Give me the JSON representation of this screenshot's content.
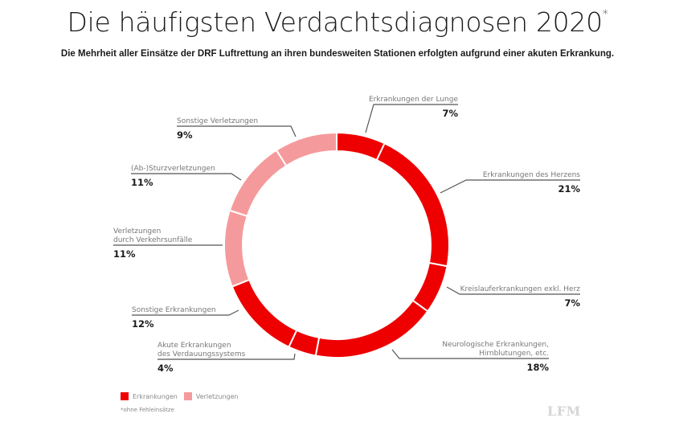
{
  "header": {
    "title": "Die häufigsten Verdachtsdiagnosen 2020",
    "title_marker": "*",
    "subtitle": "Die Mehrheit aller Einsätze der DRF Luftrettung an ihren bundesweiten Stationen erfolgten aufgrund einer akuten Erkrankung."
  },
  "colors": {
    "erkrankungen": "#EE0000",
    "verletzungen": "#F59A9C",
    "separator": "#ffffff",
    "leader": "#555555"
  },
  "chart_data": {
    "type": "pie",
    "variant": "donut",
    "title": "Die häufigsten Verdachtsdiagnosen 2020*",
    "unit": "%",
    "start": "top",
    "direction": "clockwise",
    "slices": [
      {
        "label": "Erkrankungen der Lunge",
        "value": 7,
        "value_label": "7%",
        "group": "erkrankungen"
      },
      {
        "label": "Erkrankungen des Herzens",
        "value": 21,
        "value_label": "21%",
        "group": "erkrankungen"
      },
      {
        "label": "Kreislauferkrankungen exkl. Herz",
        "value": 7,
        "value_label": "7%",
        "group": "erkrankungen"
      },
      {
        "label": "Neurologische Erkrankungen, Hirnblutungen, etc.",
        "value": 18,
        "value_label": "18%",
        "group": "erkrankungen"
      },
      {
        "label": "Akute Erkrankungen des Verdauungssystems",
        "value": 4,
        "value_label": "4%",
        "group": "erkrankungen"
      },
      {
        "label": "Sonstige Erkrankungen",
        "value": 12,
        "value_label": "12%",
        "group": "erkrankungen"
      },
      {
        "label": "Verletzungen durch Verkehrsunfälle",
        "value": 11,
        "value_label": "11%",
        "group": "verletzungen"
      },
      {
        "label": "(Ab-)Sturzverletzungen",
        "value": 11,
        "value_label": "11%",
        "group": "verletzungen"
      },
      {
        "label": "Sonstige Verletzungen",
        "value": 9,
        "value_label": "9%",
        "group": "verletzungen"
      }
    ],
    "legend": [
      {
        "label": "Erkrankungen",
        "group": "erkrankungen"
      },
      {
        "label": "Verletzungen",
        "group": "verletzungen"
      }
    ],
    "legend_position": "bottom-left"
  },
  "labels": [
    {
      "lines": [
        "Erkrankungen der Lunge"
      ],
      "pct": "7%"
    },
    {
      "lines": [
        "Erkrankungen des Herzens"
      ],
      "pct": "21%"
    },
    {
      "lines": [
        "Kreislauferkrankungen exkl. Herz"
      ],
      "pct": "7%"
    },
    {
      "lines": [
        "Neurologische Erkrankungen,",
        "Hirnblutungen, etc."
      ],
      "pct": "18%"
    },
    {
      "lines": [
        "Akute Erkrankungen",
        "des Verdauungssystems"
      ],
      "pct": "4%"
    },
    {
      "lines": [
        "Sonstige Erkrankungen"
      ],
      "pct": "12%"
    },
    {
      "lines": [
        "Verletzungen",
        "durch Verkehrsunfälle"
      ],
      "pct": "11%"
    },
    {
      "lines": [
        "(Ab-)Sturzverletzungen"
      ],
      "pct": "11%"
    },
    {
      "lines": [
        "Sonstige Verletzungen"
      ],
      "pct": "9%"
    }
  ],
  "legend": {
    "erkrankungen": "Erkrankungen",
    "verletzungen": "Verletzungen"
  },
  "footnote": "*ohne Fehleinsätze",
  "watermark": "LFM"
}
